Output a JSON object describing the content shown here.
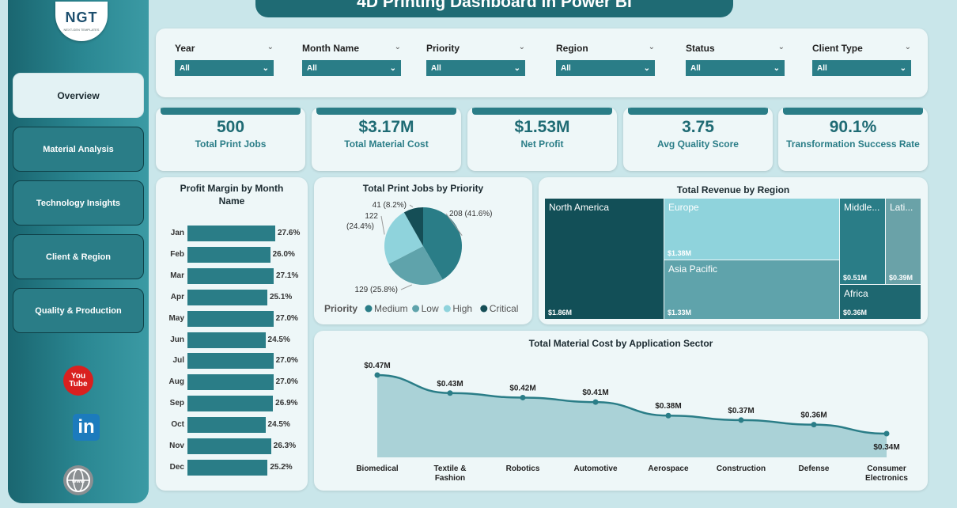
{
  "title": "4D Printing Dashboard in Power BI",
  "logo": {
    "mark": "NGT",
    "sub": "NEXT-GEN TEMPLATES"
  },
  "nav": [
    {
      "label": "Overview",
      "active": true
    },
    {
      "label": "Material Analysis"
    },
    {
      "label": "Technology Insights"
    },
    {
      "label": "Client & Region"
    },
    {
      "label": "Quality & Production"
    }
  ],
  "social": {
    "youtube": "You Tube",
    "linkedin": "in",
    "web": "www"
  },
  "slicers": [
    {
      "label": "Year",
      "value": "All"
    },
    {
      "label": "Month Name",
      "value": "All"
    },
    {
      "label": "Priority",
      "value": "All"
    },
    {
      "label": "Region",
      "value": "All"
    },
    {
      "label": "Status",
      "value": "All"
    },
    {
      "label": "Client Type",
      "value": "All"
    }
  ],
  "kpis": [
    {
      "value": "500",
      "label": "Total Print Jobs"
    },
    {
      "value": "$3.17M",
      "label": "Total Material Cost"
    },
    {
      "value": "$1.53M",
      "label": "Net Profit"
    },
    {
      "value": "3.75",
      "label": "Avg Quality Score"
    },
    {
      "value": "90.1%",
      "label": "Transformation Success Rate"
    }
  ],
  "profit_margin": {
    "title": "Profit Margin by Month Name",
    "months": [
      "Jan",
      "Feb",
      "Mar",
      "Apr",
      "May",
      "Jun",
      "Jul",
      "Aug",
      "Sep",
      "Oct",
      "Nov",
      "Dec"
    ],
    "values": [
      27.6,
      26.0,
      27.1,
      25.1,
      27.0,
      24.5,
      27.0,
      27.0,
      26.9,
      24.5,
      26.3,
      25.2
    ],
    "labels": [
      "27.6%",
      "26.0%",
      "27.1%",
      "25.1%",
      "27.0%",
      "24.5%",
      "27.0%",
      "27.0%",
      "26.9%",
      "24.5%",
      "26.3%",
      "25.2%"
    ]
  },
  "priority_pie": {
    "title": "Total Print Jobs by Priority",
    "legend_title": "Priority",
    "slices": [
      {
        "name": "Medium",
        "value": 208,
        "label": "208 (41.6%)",
        "color": "#2a7d87"
      },
      {
        "name": "Low",
        "value": 129,
        "label": "129 (25.8%)",
        "color": "#5fa3ab"
      },
      {
        "name": "High",
        "value": 122,
        "label": "122 (24.4%)",
        "color": "#8fd3dc"
      },
      {
        "name": "Critical",
        "value": 41,
        "label": "41 (8.2%)",
        "color": "#154e56"
      }
    ]
  },
  "revenue_region": {
    "title": "Total Revenue by Region",
    "regions": [
      {
        "name": "North America",
        "value": "$1.86M",
        "color": "#124f57"
      },
      {
        "name": "Europe",
        "value": "$1.38M",
        "color": "#8fd3dc"
      },
      {
        "name": "Asia Pacific",
        "value": "$1.33M",
        "color": "#5fa3ab"
      },
      {
        "name": "Middle...",
        "value": "$0.51M",
        "color": "#2a7d87"
      },
      {
        "name": "Lati...",
        "value": "$0.39M",
        "color": "#6aa2a8"
      },
      {
        "name": "Africa",
        "value": "$0.36M",
        "color": "#1e6770"
      }
    ]
  },
  "chart_data": {
    "type": "area",
    "title": "Total Material Cost by Application Sector",
    "categories": [
      "Biomedical",
      "Textile & Fashion",
      "Robotics",
      "Automotive",
      "Aerospace",
      "Construction",
      "Defense",
      "Consumer Electronics"
    ],
    "values": [
      0.47,
      0.43,
      0.42,
      0.41,
      0.38,
      0.37,
      0.36,
      0.34
    ],
    "labels": [
      "$0.47M",
      "$0.43M",
      "$0.42M",
      "$0.41M",
      "$0.38M",
      "$0.37M",
      "$0.36M",
      "$0.34M"
    ]
  }
}
